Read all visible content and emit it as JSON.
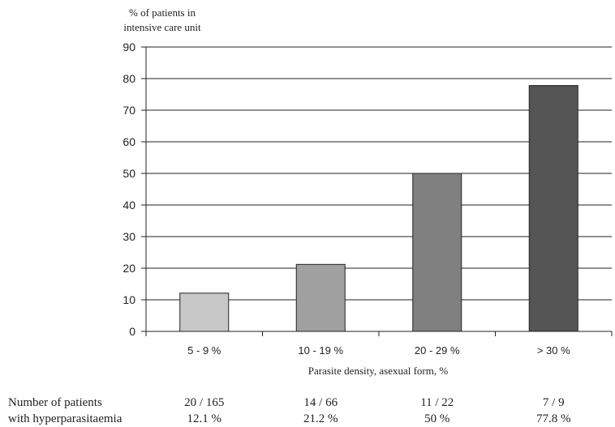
{
  "chart_data": {
    "type": "bar",
    "ylabel_lines": [
      "% of patients in",
      "intensive care unit"
    ],
    "xlabel": "Parasite density, asexual form, %",
    "categories": [
      "5 - 9 %",
      "10 - 19 %",
      "20 - 29 %",
      "> 30 %"
    ],
    "values": [
      12.1,
      21.2,
      50,
      77.8
    ],
    "ylim": [
      0,
      90
    ],
    "yticks": [
      0,
      10,
      20,
      30,
      40,
      50,
      60,
      70,
      80,
      90
    ],
    "grid": true,
    "bar_colors": [
      "#c8c8c8",
      "#a0a0a0",
      "#808080",
      "#555555"
    ]
  },
  "table": {
    "row_label_lines": [
      "Number of patients",
      "with hyperparasitaemia"
    ],
    "counts": [
      "20 / 165",
      "14 / 66",
      "11 / 22",
      "7 / 9"
    ],
    "percents": [
      "12.1 %",
      "21.2 %",
      "50 %",
      "77.8 %"
    ]
  }
}
